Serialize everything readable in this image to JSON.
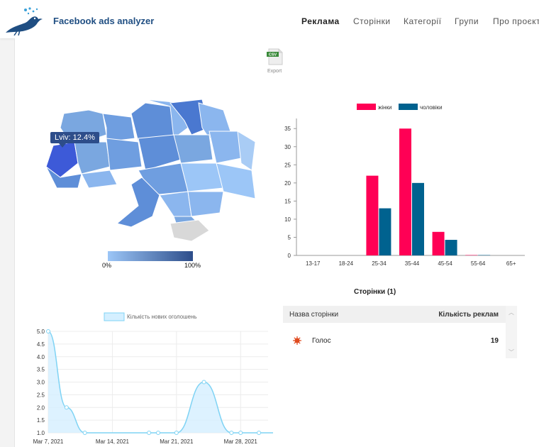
{
  "header": {
    "brand": "Facebook ads analyzer",
    "nav": [
      "Реклама",
      "Сторінки",
      "Категорії",
      "Групи",
      "Про проєкт"
    ]
  },
  "export": {
    "badge": "CSV",
    "label": "Export"
  },
  "map": {
    "tooltip": "Lviv: 12.4%",
    "legend_min": "0%",
    "legend_max": "100%",
    "colors": {
      "low": "#9cc6f7",
      "high": "#2d4d8a",
      "highlight": "#3d5ad8",
      "inactive": "#d8d8d8"
    }
  },
  "bar_chart": {
    "type": "bar",
    "categories": [
      "13-17",
      "18-24",
      "25-34",
      "35-44",
      "45-54",
      "55-64",
      "65+"
    ],
    "series": [
      {
        "name": "жінки",
        "color": "#ff0055",
        "values": [
          0,
          0,
          22,
          35,
          6.5,
          0.1,
          0
        ]
      },
      {
        "name": "чоловіки",
        "color": "#00628f",
        "values": [
          0,
          0,
          13,
          20,
          4.3,
          0.1,
          0
        ]
      }
    ],
    "yticks": [
      0,
      5,
      10,
      15,
      20,
      25,
      30,
      35
    ],
    "ylim": [
      0,
      37
    ]
  },
  "pages": {
    "title": "Сторінки (1)",
    "col_name": "Назва сторінки",
    "col_count": "Кількість реклам",
    "rows": [
      {
        "name": "Голос",
        "count": "19"
      }
    ]
  },
  "line_chart": {
    "type": "area",
    "series_name": "Кількість нових оголошень",
    "x_labels": [
      "Mar 7, 2021",
      "Mar 14, 2021",
      "Mar 21, 2021",
      "Mar 28, 2021"
    ],
    "yticks": [
      "1.0",
      "1.5",
      "2.0",
      "2.5",
      "3.0",
      "3.5",
      "4.0",
      "4.5",
      "5.0"
    ],
    "ylim": [
      1,
      5
    ],
    "points": [
      {
        "x": "Mar 7, 2021",
        "y": 5
      },
      {
        "x": "Mar 9, 2021",
        "y": 2
      },
      {
        "x": "Mar 11, 2021",
        "y": 1
      },
      {
        "x": "Mar 18, 2021",
        "y": 1
      },
      {
        "x": "Mar 19, 2021",
        "y": 1
      },
      {
        "x": "Mar 21, 2021",
        "y": 1
      },
      {
        "x": "Mar 24, 2021",
        "y": 3
      },
      {
        "x": "Mar 27, 2021",
        "y": 1
      },
      {
        "x": "Mar 28, 2021",
        "y": 1
      },
      {
        "x": "Mar 30, 2021",
        "y": 1
      },
      {
        "x": "Apr 1, 2021",
        "y": 1
      }
    ],
    "color": "#7fd3f4"
  }
}
